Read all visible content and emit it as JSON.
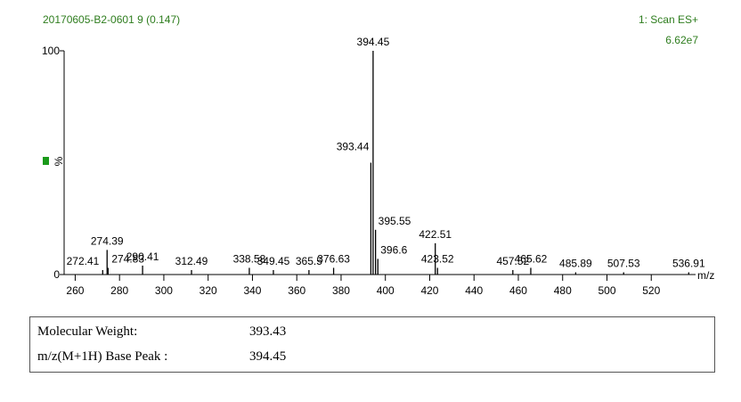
{
  "chart_data": {
    "type": "spectrum",
    "title": "20170605-B2-0601 9 (0.147)",
    "annotations": [
      "1: Scan ES+",
      "6.62e7"
    ],
    "y_label": "%",
    "x_label": "m/z",
    "x": [
      272.41,
      274.39,
      274.83,
      290.41,
      312.49,
      338.58,
      349.45,
      365.5,
      376.63,
      393.44,
      394.45,
      395.55,
      396.6,
      422.51,
      423.52,
      457.52,
      465.62,
      485.89,
      507.53,
      536.91
    ],
    "values": [
      2,
      11,
      3,
      4,
      2,
      3,
      2,
      2,
      3,
      50,
      100,
      20,
      7,
      14,
      3,
      2,
      3,
      1,
      1,
      1
    ],
    "color": "#000000",
    "title_color": "#2e7d1e",
    "xlim": [
      255,
      540
    ],
    "ylim": [
      0,
      100
    ],
    "xticks": [
      260,
      280,
      300,
      320,
      340,
      360,
      380,
      400,
      420,
      440,
      460,
      480,
      500,
      520
    ],
    "yticks": [
      0,
      100
    ]
  },
  "table": {
    "rows": [
      [
        "Molecular Weight:",
        "393.43"
      ],
      [
        "m/z(M+1H) Base Peak :",
        "394.45"
      ]
    ]
  }
}
